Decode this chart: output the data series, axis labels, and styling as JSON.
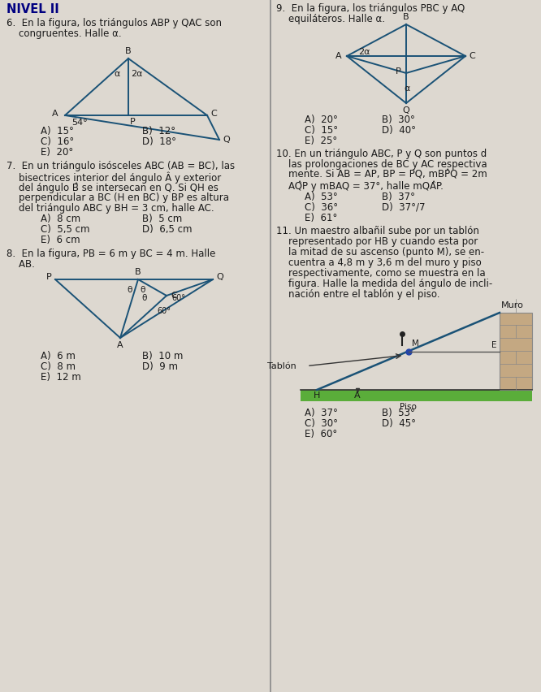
{
  "bg_color": "#ddd8d0",
  "line_color": "#1a5276",
  "text_color": "#1a1a1a",
  "bold_color": "#000080",
  "divider_color": "#888888",
  "nivel": "NIVEL II",
  "q6_line1": "6.  En la figura, los triángulos ABP y QAC son",
  "q6_line2": "    congruentes. Halle α.",
  "q6_ans": [
    [
      "A)  15°",
      "B)  12°"
    ],
    [
      "C)  16°",
      "D)  18°"
    ],
    [
      "E)  20°",
      ""
    ]
  ],
  "q7_line1": "7.  En un triángulo isósceles ABC (AB = BC), las",
  "q7_line2": "    bisectrices interior del ángulo Â y exterior",
  "q7_line3": "    del ángulo B̂ se intersecan en Q. Si QH es",
  "q7_line4": "    perpendicular a BC (H en BC) y BP es altura",
  "q7_line5": "    del triángulo ABC y BH = 3 cm, halle AC.",
  "q7_ans": [
    [
      "A)  8 cm",
      "B)  5 cm"
    ],
    [
      "C)  5,5 cm",
      "D)  6,5 cm"
    ],
    [
      "E)  6 cm",
      ""
    ]
  ],
  "q8_line1": "8.  En la figura, PB = 6 m y BC = 4 m. Halle",
  "q8_line2": "    AB.",
  "q8_ans": [
    [
      "A)  6 m",
      "B)  10 m"
    ],
    [
      "C)  8 m",
      "D)  9 m"
    ],
    [
      "E)  12 m",
      ""
    ]
  ],
  "q9_line1": "9.  En la figura, los triángulos PBC y AQ",
  "q9_line2": "    equiláteros. Halle α.",
  "q9_ans": [
    [
      "A)  20°",
      "B)  30°"
    ],
    [
      "C)  15°",
      "D)  40°"
    ],
    [
      "E)  25°",
      ""
    ]
  ],
  "q10_line1": "10. En un triángulo ABC, P y Q son puntos d",
  "q10_line2": "    las prolongaciones de BC y AC respectiva",
  "q10_line3": "    mente. Si AB = AP, BP = PQ, mBP̂Q = 2m",
  "q10_line4": "    AQ̂P y mBAQ = 37°, halle mQÂP.",
  "q10_ans": [
    [
      "A)  53°",
      "B)  37°"
    ],
    [
      "C)  36°",
      "D)  37°/7"
    ],
    [
      "E)  61°",
      ""
    ]
  ],
  "q11_line1": "11. Un maestro albañil sube por un tablón",
  "q11_line2": "    representado por HB y cuando esta por",
  "q11_line3": "    la mitad de su ascenso (punto M), se en-",
  "q11_line4": "    cuentra a 4,8 m y 3,6 m del muro y piso",
  "q11_line5": "    respectivamente, como se muestra en la",
  "q11_line6": "    figura. Halle la medida del ángulo de incli-",
  "q11_line7": "    nación entre el tablón y el piso.",
  "q11_ans": [
    [
      "A)  37°",
      "B)  53°"
    ],
    [
      "C)  30°",
      "D)  45°"
    ],
    [
      "E)  60°",
      ""
    ]
  ]
}
